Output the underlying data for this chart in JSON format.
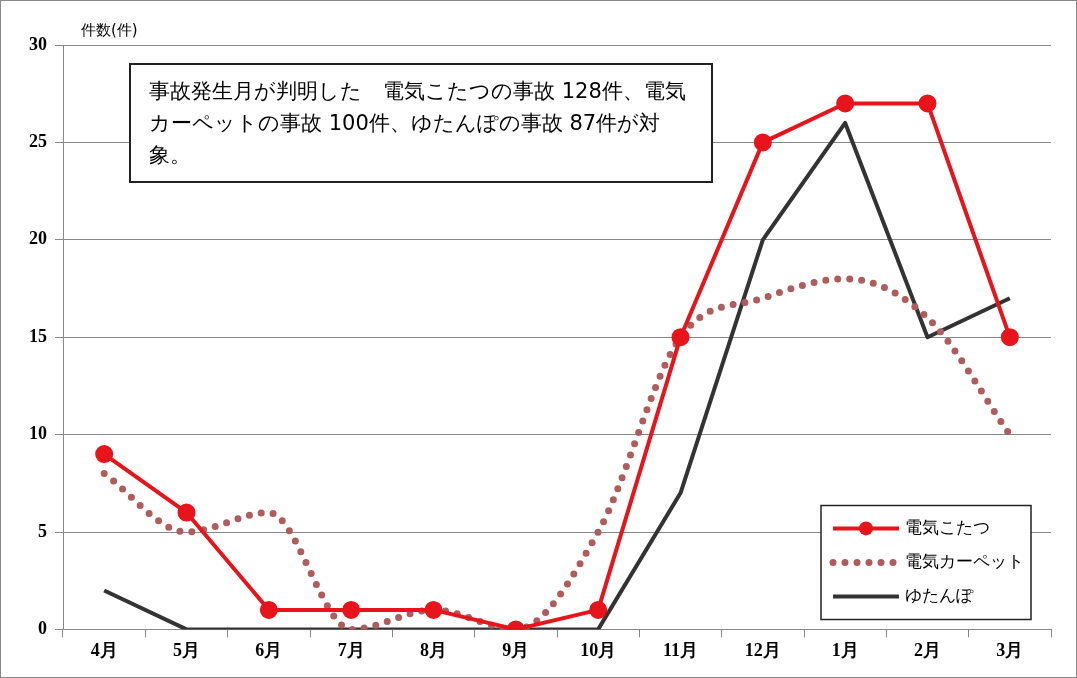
{
  "chart_data": {
    "type": "line",
    "ylabel": "件数(件)",
    "annotations": [
      "事故発生月が判明した　電気こたつの事故 128件、電気カーペットの事故 100件、ゆたんぽの事故 87件が対象。"
    ],
    "categories": [
      "4月",
      "5月",
      "6月",
      "7月",
      "8月",
      "9月",
      "10月",
      "11月",
      "12月",
      "1月",
      "2月",
      "3月"
    ],
    "series": [
      {
        "name": "電気こたつ",
        "color": "#e8141b",
        "marker": "circle",
        "line_style": "solid",
        "values": [
          9,
          6,
          1,
          1,
          1,
          0,
          1,
          15,
          25,
          27,
          27,
          15
        ]
      },
      {
        "name": "電気カーペット",
        "color": "#b05c5c",
        "marker": "none",
        "line_style": "dotted",
        "values": [
          8,
          5,
          6,
          0,
          1,
          0,
          5,
          15,
          17,
          18,
          16,
          10
        ]
      },
      {
        "name": "ゆたんぽ",
        "color": "#333333",
        "marker": "none",
        "line_style": "solid",
        "values": [
          2,
          0,
          0,
          0,
          0,
          0,
          0,
          7,
          20,
          26,
          15,
          17
        ]
      }
    ],
    "ylim": [
      0,
      30
    ],
    "yticks": [
      0,
      5,
      10,
      15,
      20,
      25,
      30
    ],
    "grid": "y",
    "legend": "bottom right"
  }
}
